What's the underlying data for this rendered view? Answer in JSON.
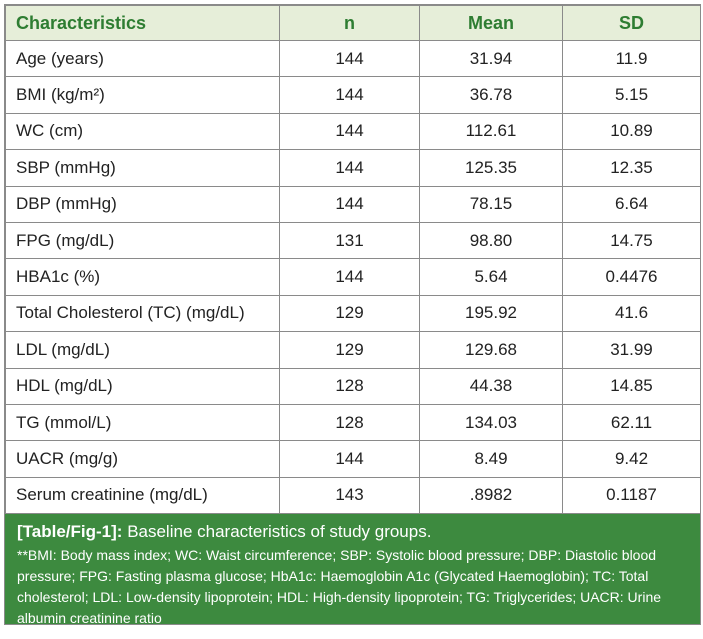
{
  "table": {
    "headers": [
      "Characteristics",
      "n",
      "Mean",
      "SD"
    ],
    "rows": [
      [
        "Age (years)",
        "144",
        "31.94",
        "11.9"
      ],
      [
        "BMI (kg/m²)",
        "144",
        "36.78",
        "5.15"
      ],
      [
        "WC (cm)",
        "144",
        "112.61",
        "10.89"
      ],
      [
        "SBP (mmHg)",
        "144",
        "125.35",
        "12.35"
      ],
      [
        "DBP (mmHg)",
        "144",
        "78.15",
        "6.64"
      ],
      [
        "FPG (mg/dL)",
        "131",
        "98.80",
        "14.75"
      ],
      [
        "HBA1c (%)",
        "144",
        "5.64",
        "0.4476"
      ],
      [
        "Total Cholesterol (TC) (mg/dL)",
        "129",
        "195.92",
        "41.6"
      ],
      [
        "LDL (mg/dL)",
        "129",
        "129.68",
        "31.99"
      ],
      [
        "HDL (mg/dL)",
        "128",
        "44.38",
        "14.85"
      ],
      [
        "TG (mmol/L)",
        "128",
        "134.03",
        "62.11"
      ],
      [
        "UACR (mg/g)",
        "144",
        "8.49",
        "9.42"
      ],
      [
        "Serum creatinine (mg/dL)",
        "143",
        ".8982",
        "0.1187"
      ]
    ]
  },
  "caption": {
    "label": "[Table/Fig-1]:",
    "title": "Baseline characteristics of study groups.",
    "notes": "**BMI: Body mass index; WC: Waist circumference; SBP: Systolic blood pressure; DBP: Diastolic blood pressure; FPG: Fasting plasma glucose; HbA1c: Haemoglobin A1c (Glycated Haemoglobin); TC: Total cholesterol; LDL: Low-density lipoprotein; HDL: High-density lipoprotein; TG: Triglycerides; UACR: Urine albumin creatinine ratio"
  },
  "colors": {
    "header_bg": "#e6eed9",
    "header_text": "#2e7d32",
    "caption_bg": "#3d8a3f"
  }
}
